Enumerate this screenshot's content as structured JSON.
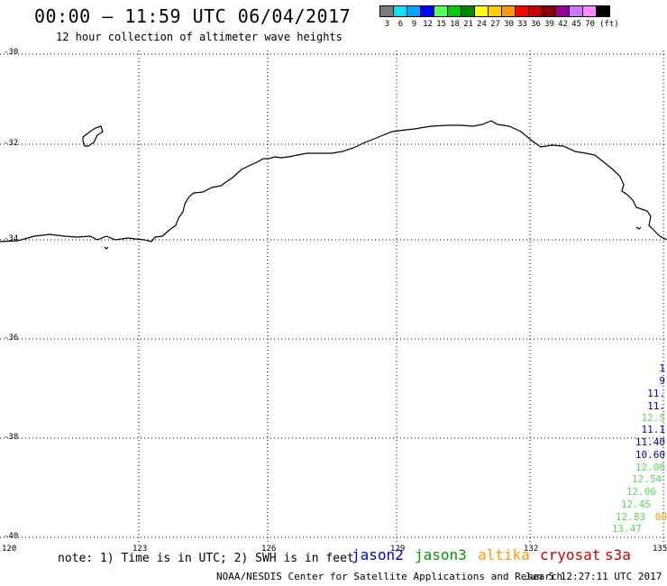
{
  "header": {
    "title": "00:00 – 11:59 UTC 06/04/2017",
    "subtitle": "12 hour collection of altimeter wave heights"
  },
  "color_scale": {
    "swatches": [
      "#7a7a7a",
      "#00e5ff",
      "#00a8ff",
      "#0000ff",
      "#55ff55",
      "#00cc00",
      "#008800",
      "#ffff00",
      "#ffcc00",
      "#ff9900",
      "#ff0000",
      "#cc0000",
      "#880000",
      "#990099",
      "#cc77ff",
      "#ff88ff",
      "#000000"
    ],
    "labels": [
      "3",
      "6",
      "9",
      "12",
      "15",
      "18",
      "21",
      "24",
      "27",
      "30",
      "33",
      "36",
      "39",
      "42",
      "45",
      "70"
    ],
    "unit": "(ft)"
  },
  "axes": {
    "lat_labels": [
      "-30",
      "-32",
      "-34",
      "-36",
      "-38",
      "-40"
    ],
    "lon_labels": [
      "120",
      "123",
      "126",
      "129",
      "132",
      "135"
    ]
  },
  "footer": {
    "note": "note: 1) Time is in UTC; 2) SWH is in feet",
    "satellites": [
      {
        "name": "jason2",
        "color": "#0000cc"
      },
      {
        "name": "jason3",
        "color": "#009900"
      },
      {
        "name": "altika",
        "color": "#ff9900"
      },
      {
        "name": "cryosat",
        "color": "#cc0000"
      },
      {
        "name": "s3a",
        "color": "#cc0000"
      }
    ],
    "credit": "NOAA/NESDIS Center for Satellite Applications and Research",
    "generated": "Jun  5 12:27:11 UTC 2017"
  },
  "wave_heights": [
    {
      "text": "1",
      "color": "#0000aa"
    },
    {
      "text": "9",
      "color": "#0000aa"
    },
    {
      "text": "11.",
      "color": "#0000aa"
    },
    {
      "text": "11.",
      "color": "#0000aa"
    },
    {
      "text": "12.5",
      "color": "#55dd55"
    },
    {
      "text": "11.1",
      "color": "#0000aa"
    },
    {
      "text": "11.40",
      "color": "#0000aa"
    },
    {
      "text": "10.60",
      "color": "#0000aa"
    },
    {
      "text": "12.06",
      "color": "#55dd55"
    },
    {
      "text": "12.54",
      "color": "#55dd55"
    },
    {
      "text": "12.06",
      "color": "#55dd55"
    },
    {
      "text": "12.45",
      "color": "#55dd55"
    },
    {
      "text": "12.83",
      "color": "#55dd55"
    },
    {
      "text": "08",
      "color": "#ff9900"
    },
    {
      "text": "13.47",
      "color": "#55dd55"
    }
  ]
}
